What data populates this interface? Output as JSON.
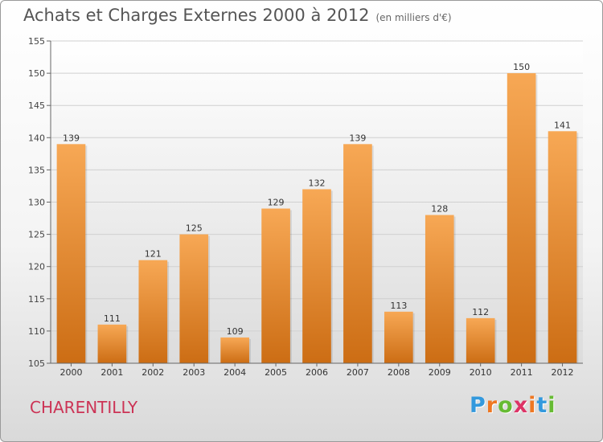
{
  "header": {
    "title": "Achats et Charges Externes 2000 à 2012",
    "unit": "(en milliers d'€)"
  },
  "footer": {
    "city": "CHARENTILLY",
    "logo_letters": [
      "P",
      "r",
      "o",
      "x",
      "i",
      "t",
      "i"
    ],
    "logo_colors": [
      "#3399dd",
      "#ee7722",
      "#66bb33",
      "#dd3366",
      "#ee7722",
      "#3399dd",
      "#66bb33"
    ]
  },
  "chart_data": {
    "type": "bar",
    "title": "Achats et Charges Externes 2000 à 2012",
    "subtitle": "(en milliers d'€)",
    "categories": [
      "2000",
      "2001",
      "2002",
      "2003",
      "2004",
      "2005",
      "2006",
      "2007",
      "2008",
      "2009",
      "2010",
      "2011",
      "2012"
    ],
    "values": [
      139,
      111,
      121,
      125,
      109,
      129,
      132,
      139,
      113,
      128,
      112,
      150,
      141
    ],
    "ylim": [
      105,
      155
    ],
    "yticks": [
      105,
      110,
      115,
      120,
      125,
      130,
      135,
      140,
      145,
      150,
      155
    ],
    "grid": true,
    "bar_color_top": "#f7a855",
    "bar_color_bottom": "#cc6d14"
  }
}
